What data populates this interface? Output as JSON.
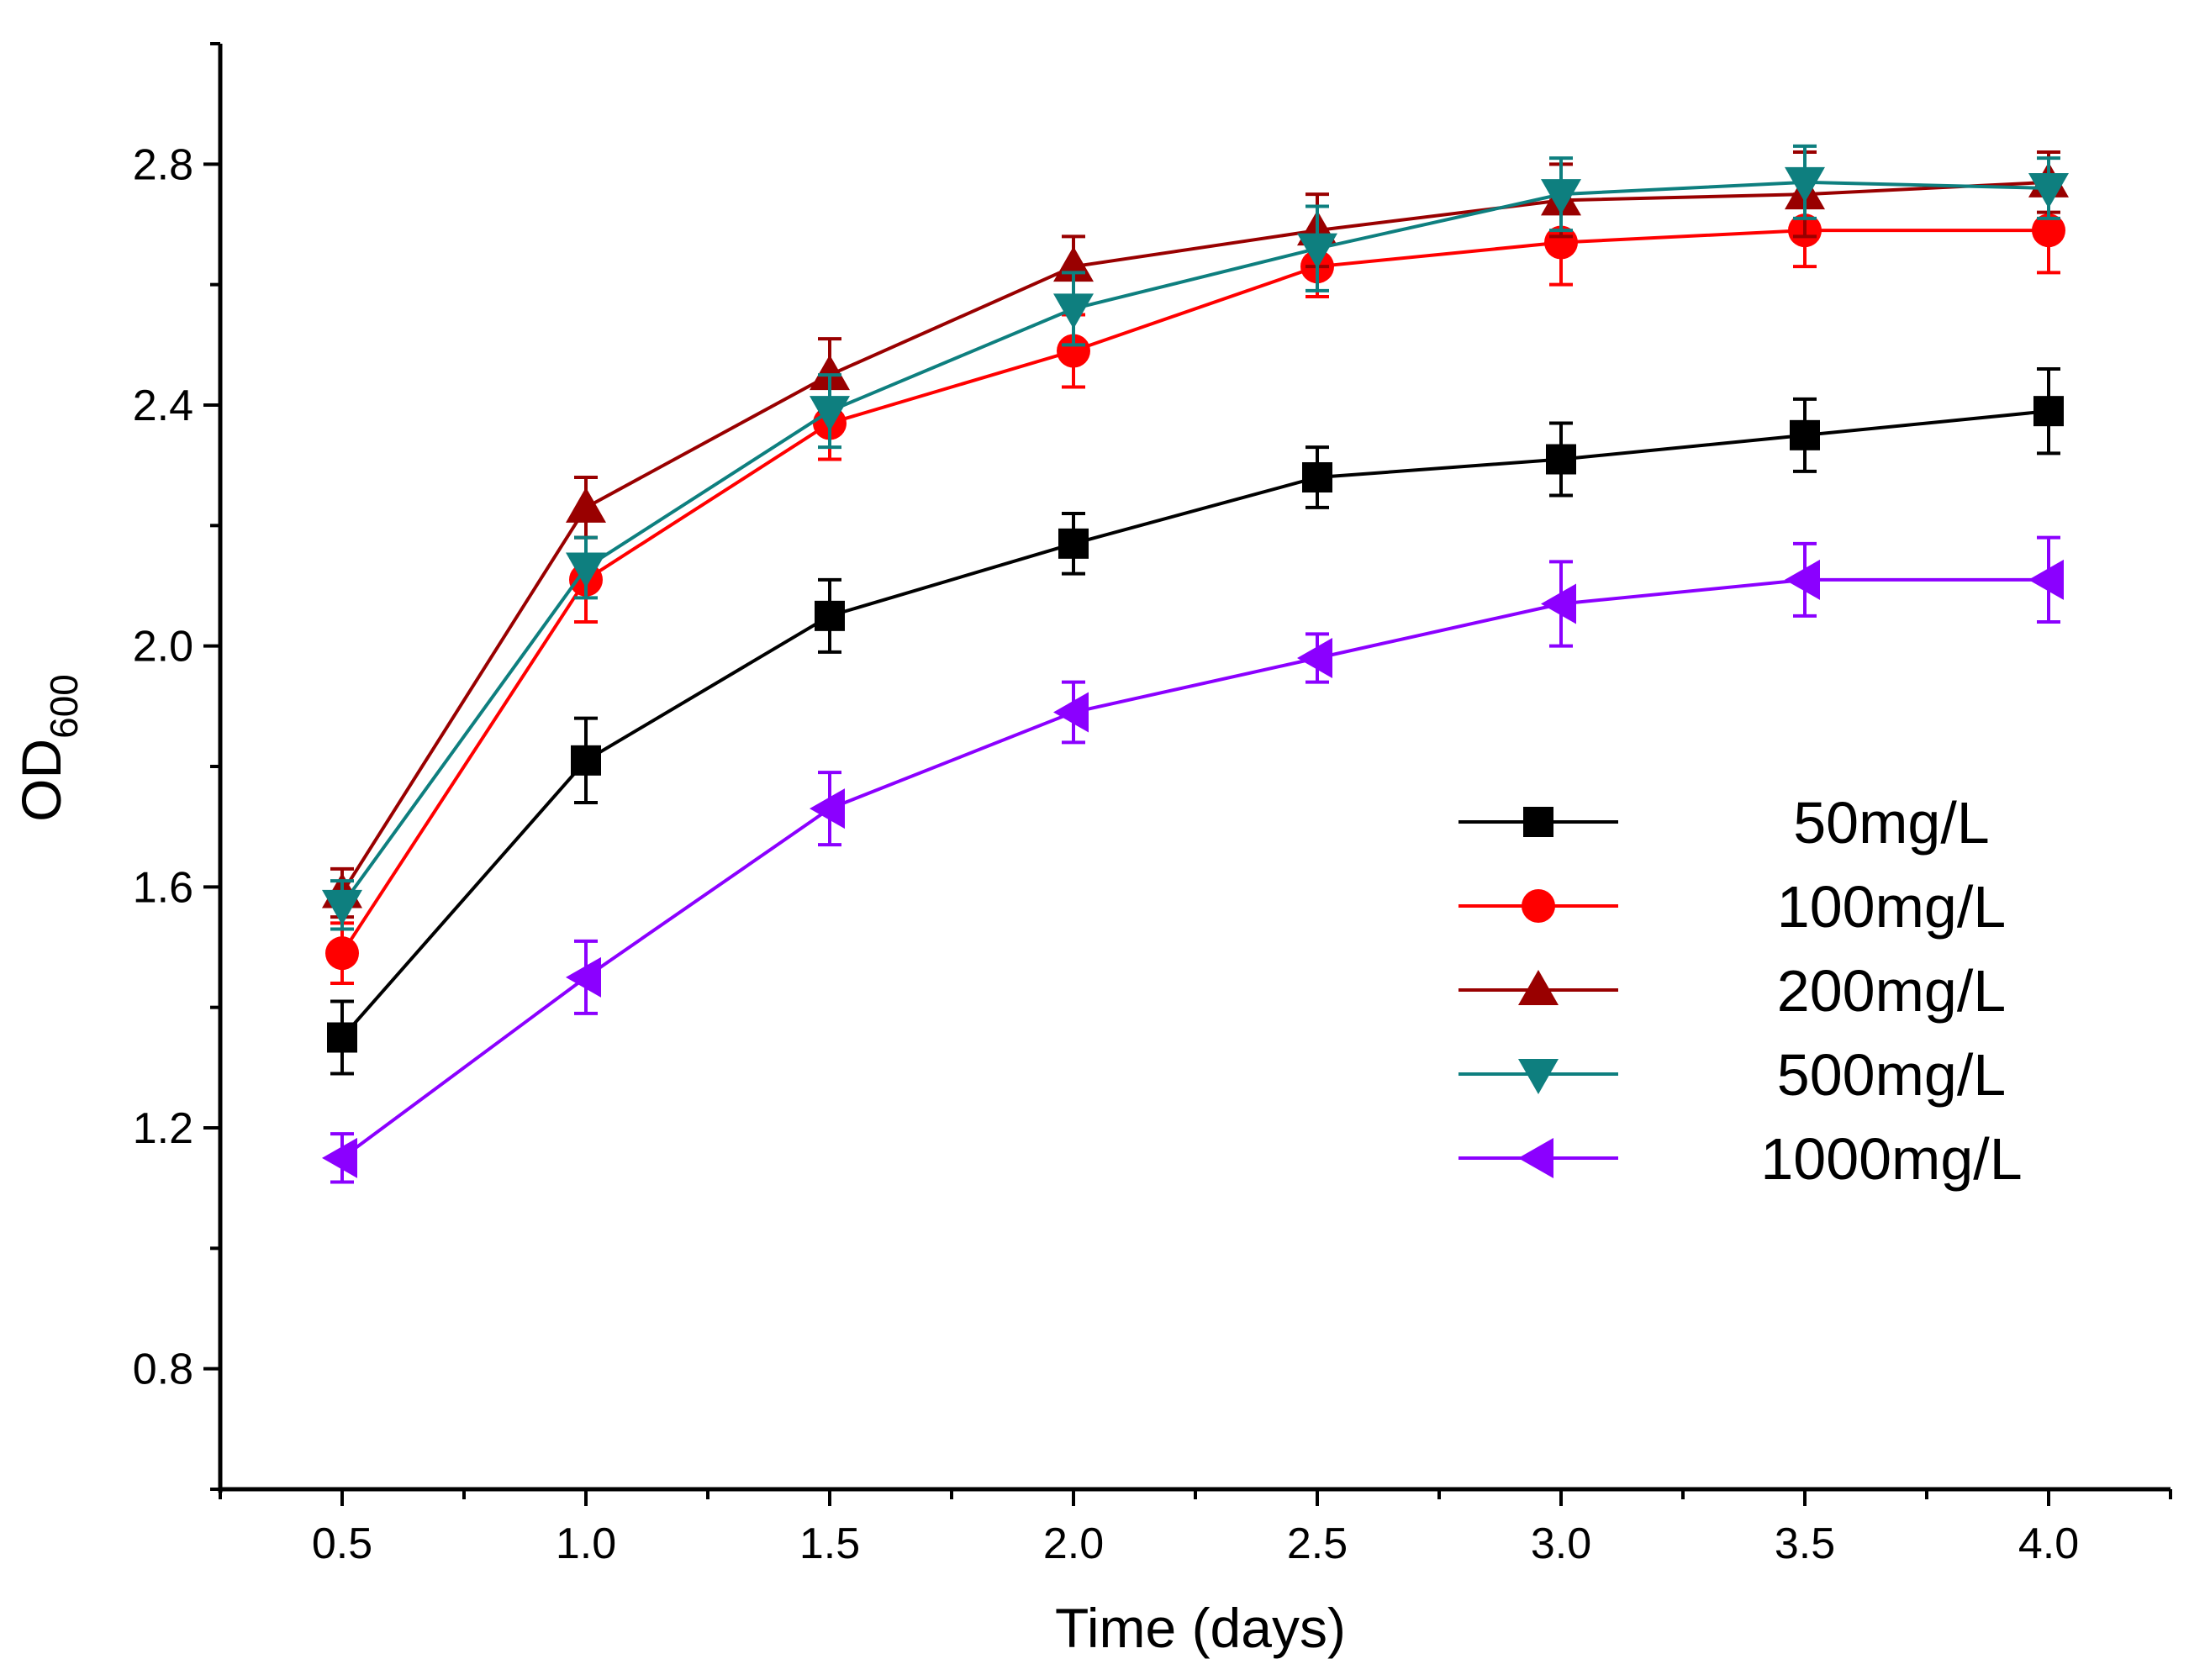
{
  "chart_data": {
    "type": "line",
    "xlabel": "Time (days)",
    "ylabel": {
      "main": "OD",
      "subscript": "600"
    },
    "x": [
      0.5,
      1.0,
      1.5,
      2.0,
      2.5,
      3.0,
      3.5,
      4.0
    ],
    "xticks": [
      0.5,
      1.0,
      1.5,
      2.0,
      2.5,
      3.0,
      3.5,
      4.0
    ],
    "xtick_labels": [
      "0.5",
      "1.0",
      "1.5",
      "2.0",
      "2.5",
      "3.0",
      "3.5",
      "4.0"
    ],
    "yticks": [
      0.8,
      1.2,
      1.6,
      2.0,
      2.4,
      2.8
    ],
    "ytick_labels": [
      "0.8",
      "1.2",
      "1.6",
      "2.0",
      "2.4",
      "2.8"
    ],
    "xlim": [
      0.25,
      4.25
    ],
    "ylim": [
      0.6,
      3.0
    ],
    "grid": false,
    "legend_position": "center-right",
    "series": [
      {
        "name": "50mg/L",
        "color": "#000000",
        "marker": "square",
        "values": [
          1.35,
          1.81,
          2.05,
          2.17,
          2.28,
          2.31,
          2.35,
          2.39
        ],
        "errors": [
          0.06,
          0.07,
          0.06,
          0.05,
          0.05,
          0.06,
          0.06,
          0.07
        ]
      },
      {
        "name": "100mg/L",
        "color": "#ff0000",
        "marker": "circle",
        "values": [
          1.49,
          2.11,
          2.37,
          2.49,
          2.63,
          2.67,
          2.69,
          2.69
        ],
        "errors": [
          0.05,
          0.07,
          0.06,
          0.06,
          0.05,
          0.07,
          0.06,
          0.07
        ]
      },
      {
        "name": "200mg/L",
        "color": "#990000",
        "marker": "triangle-up",
        "values": [
          1.59,
          2.23,
          2.45,
          2.63,
          2.69,
          2.74,
          2.75,
          2.77
        ],
        "errors": [
          0.04,
          0.05,
          0.06,
          0.05,
          0.06,
          0.06,
          0.07,
          0.05
        ]
      },
      {
        "name": "500mg/L",
        "color": "#0e7f7f",
        "marker": "triangle-down",
        "values": [
          1.57,
          2.13,
          2.39,
          2.56,
          2.66,
          2.75,
          2.77,
          2.76
        ],
        "errors": [
          0.04,
          0.05,
          0.06,
          0.06,
          0.07,
          0.06,
          0.06,
          0.05
        ]
      },
      {
        "name": "1000mg/L",
        "color": "#8b00ff",
        "marker": "triangle-left",
        "values": [
          1.15,
          1.45,
          1.73,
          1.89,
          1.98,
          2.07,
          2.11,
          2.11
        ],
        "errors": [
          0.04,
          0.06,
          0.06,
          0.05,
          0.04,
          0.07,
          0.06,
          0.07
        ]
      }
    ]
  }
}
